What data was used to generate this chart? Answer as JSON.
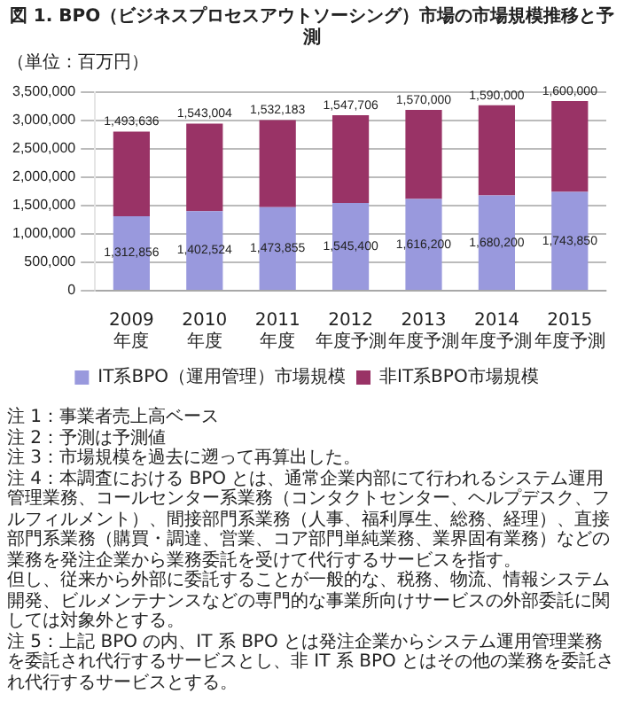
{
  "chart_data": {
    "type": "bar",
    "title": "図 1. BPO（ビジネスプロセスアウトソーシング）市場の市場規模推移と予測",
    "ylabel": "（単位：百万円）",
    "categories": [
      "2009年度",
      "2010年度",
      "2011年度",
      "2012年度予測",
      "2013年度予測",
      "2014年度予測",
      "2015年度予測"
    ],
    "series": [
      {
        "name": "IT系BPO（運用管理）市場規模",
        "color": "#9999dd",
        "values": [
          1312856,
          1402524,
          1473855,
          1545400,
          1616200,
          1680200,
          1743850
        ],
        "value_labels": [
          "1,312,856",
          "1,402,524",
          "1,473,855",
          "1,545,400",
          "1,616,200",
          "1,680,200",
          "1,743,850"
        ]
      },
      {
        "name": "非IT系BPO市場規模",
        "color": "#993366",
        "values": [
          1493636,
          1543004,
          1532183,
          1547706,
          1570000,
          1590000,
          1600000
        ],
        "value_labels": [
          "1,493,636",
          "1,543,004",
          "1,532,183",
          "1,547,706",
          "1,570,000",
          "1,590,000",
          "1,600,000"
        ]
      }
    ],
    "stacked": true,
    "ylim": [
      0,
      3500000
    ],
    "yticks": [
      0,
      {
        "value": 500000,
        "label": "500,000"
      },
      {
        "value": 1000000,
        "label": "1,000,000"
      },
      {
        "value": 1500000,
        "label": "1,500,000"
      },
      {
        "value": 2000000,
        "label": "2,000,000"
      },
      {
        "value": 2500000,
        "label": "2,500,000"
      },
      {
        "value": 3000000,
        "label": "3,000,000"
      },
      {
        "value": 3500000,
        "label": "3,500,000"
      }
    ],
    "grid": "y",
    "legend": "bottom",
    "annotations": [
      "注 1：事業者売上高ベース",
      "注 2：予測は予測値",
      "注 3：市場規模を過去に遡って再算出した。",
      "注 4：本調査における BPO とは、通常企業内部にて行われるシステム運用管理業務、コールセンター系業務（コンタクトセンター、ヘルプデスク、フルフィルメント）、間接部門系業務（人事、福利厚生、総務、経理）、直接部門系業務（購買・調達、営業、コア部門単純業務、業界固有業務）などの業務を発注企業から業務委託を受けて代行するサービスを指す。",
      "但し、従来から外部に委託することが一般的な、税務、物流、情報システム開発、ビルメンテナンスなどの専門的な事業所向けサービスの外部委託に関しては対象外とする。",
      "注 5：上記 BPO の内、IT 系 BPO とは発注企業からシステム運用管理業務を委託され代行するサービスとし、非 IT 系 BPO とはその他の業務を委託され代行するサービスとする。"
    ]
  }
}
